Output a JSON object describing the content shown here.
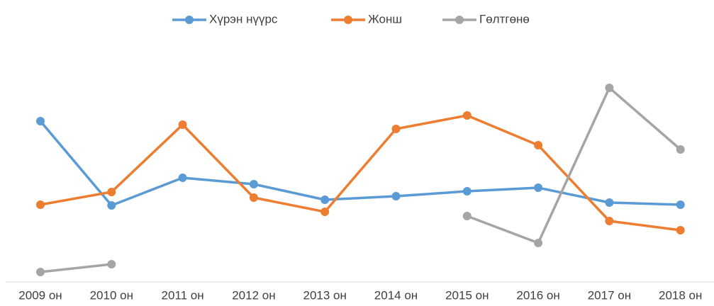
{
  "chart_data": {
    "type": "line",
    "categories": [
      "2009 он",
      "2010 он",
      "2011 он",
      "2012 он",
      "2013 он",
      "2014 он",
      "2015 он",
      "2016 он",
      "2017 он",
      "2018 он"
    ],
    "series": [
      {
        "name": "Хүрэн нүүрс",
        "color": "#5b9bd5",
        "values": [
          227,
          108,
          147,
          138,
          116,
          121,
          128,
          133,
          112,
          109
        ]
      },
      {
        "name": "Жонш",
        "color": "#ed7d31",
        "values": [
          109,
          127,
          222,
          119,
          99,
          216,
          235,
          193,
          86,
          73
        ]
      },
      {
        "name": "Гөлтгөнө",
        "color": "#a5a5a5",
        "values": [
          14,
          25,
          null,
          null,
          null,
          null,
          93,
          55,
          274,
          187
        ]
      }
    ],
    "ylim": [
      0,
      300
    ],
    "legend": "top"
  }
}
